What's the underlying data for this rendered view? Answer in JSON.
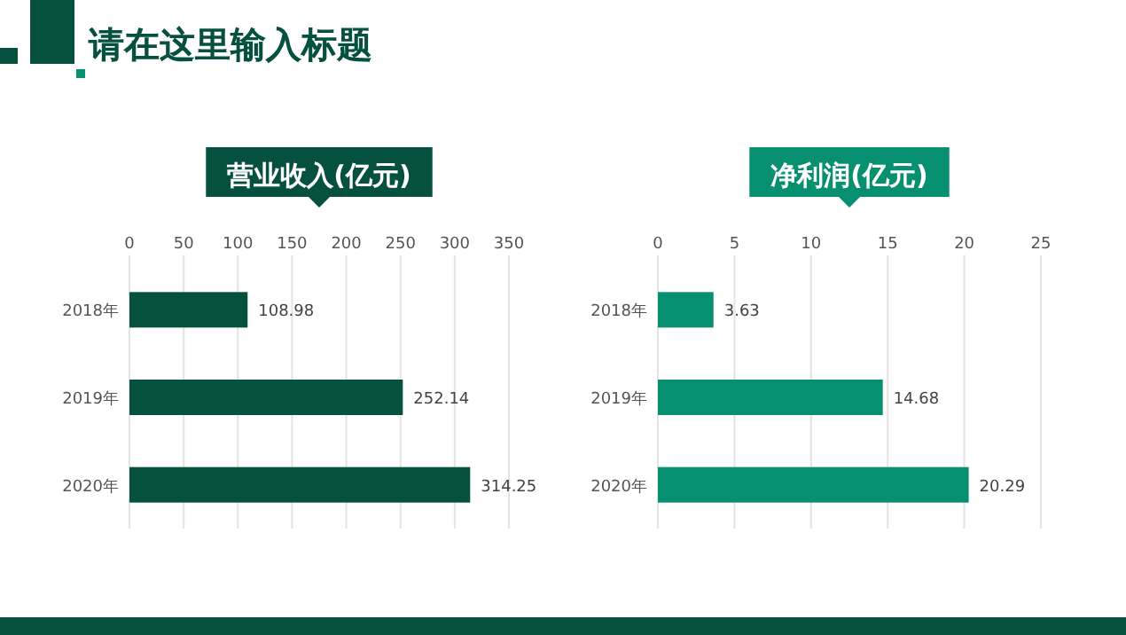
{
  "chart_data": [
    {
      "type": "bar",
      "orientation": "horizontal",
      "title": "营业收入(亿元)",
      "annotations": [
        "请在这里输入标题"
      ],
      "categories": [
        "2018年",
        "2019年",
        "2020年"
      ],
      "values": [
        108.98,
        252.14,
        314.25
      ],
      "color": "#05503f",
      "xlim": [
        0,
        350
      ],
      "xticks": [
        0,
        50,
        100,
        150,
        200,
        250,
        300,
        350
      ],
      "grid": "x",
      "data_labels": true
    },
    {
      "type": "bar",
      "orientation": "horizontal",
      "title": "净利润(亿元)",
      "categories": [
        "2018年",
        "2019年",
        "2020年"
      ],
      "values": [
        3.63,
        14.68,
        20.29
      ],
      "color": "#079070",
      "xlim": [
        0,
        25
      ],
      "xticks": [
        0,
        5,
        10,
        15,
        20,
        25
      ],
      "grid": "x",
      "data_labels": true
    }
  ]
}
